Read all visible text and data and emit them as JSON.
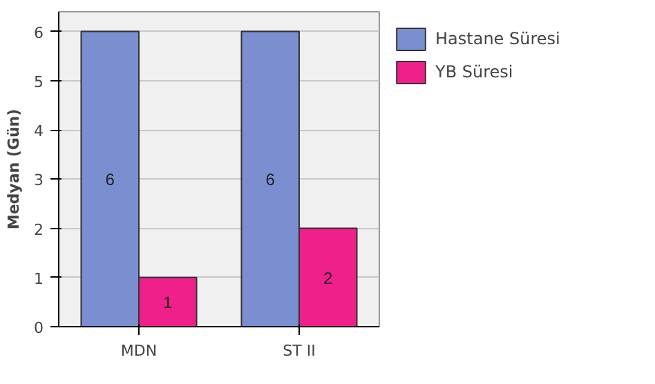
{
  "chart_data": {
    "type": "bar",
    "ylabel": "Medyan (Gün)",
    "categories": [
      "MDN",
      "ST II"
    ],
    "series": [
      {
        "name": "Hastane Süresi",
        "color": "#7b8fd0",
        "values": [
          6,
          6
        ]
      },
      {
        "name": "YB Süresi",
        "color": "#f0208a",
        "values": [
          1,
          2
        ]
      }
    ],
    "ylim": [
      0,
      6.4
    ],
    "yticks": [
      0,
      1,
      2,
      3,
      4,
      5,
      6
    ],
    "grid": "y",
    "legend": "right",
    "data_labels": true
  }
}
